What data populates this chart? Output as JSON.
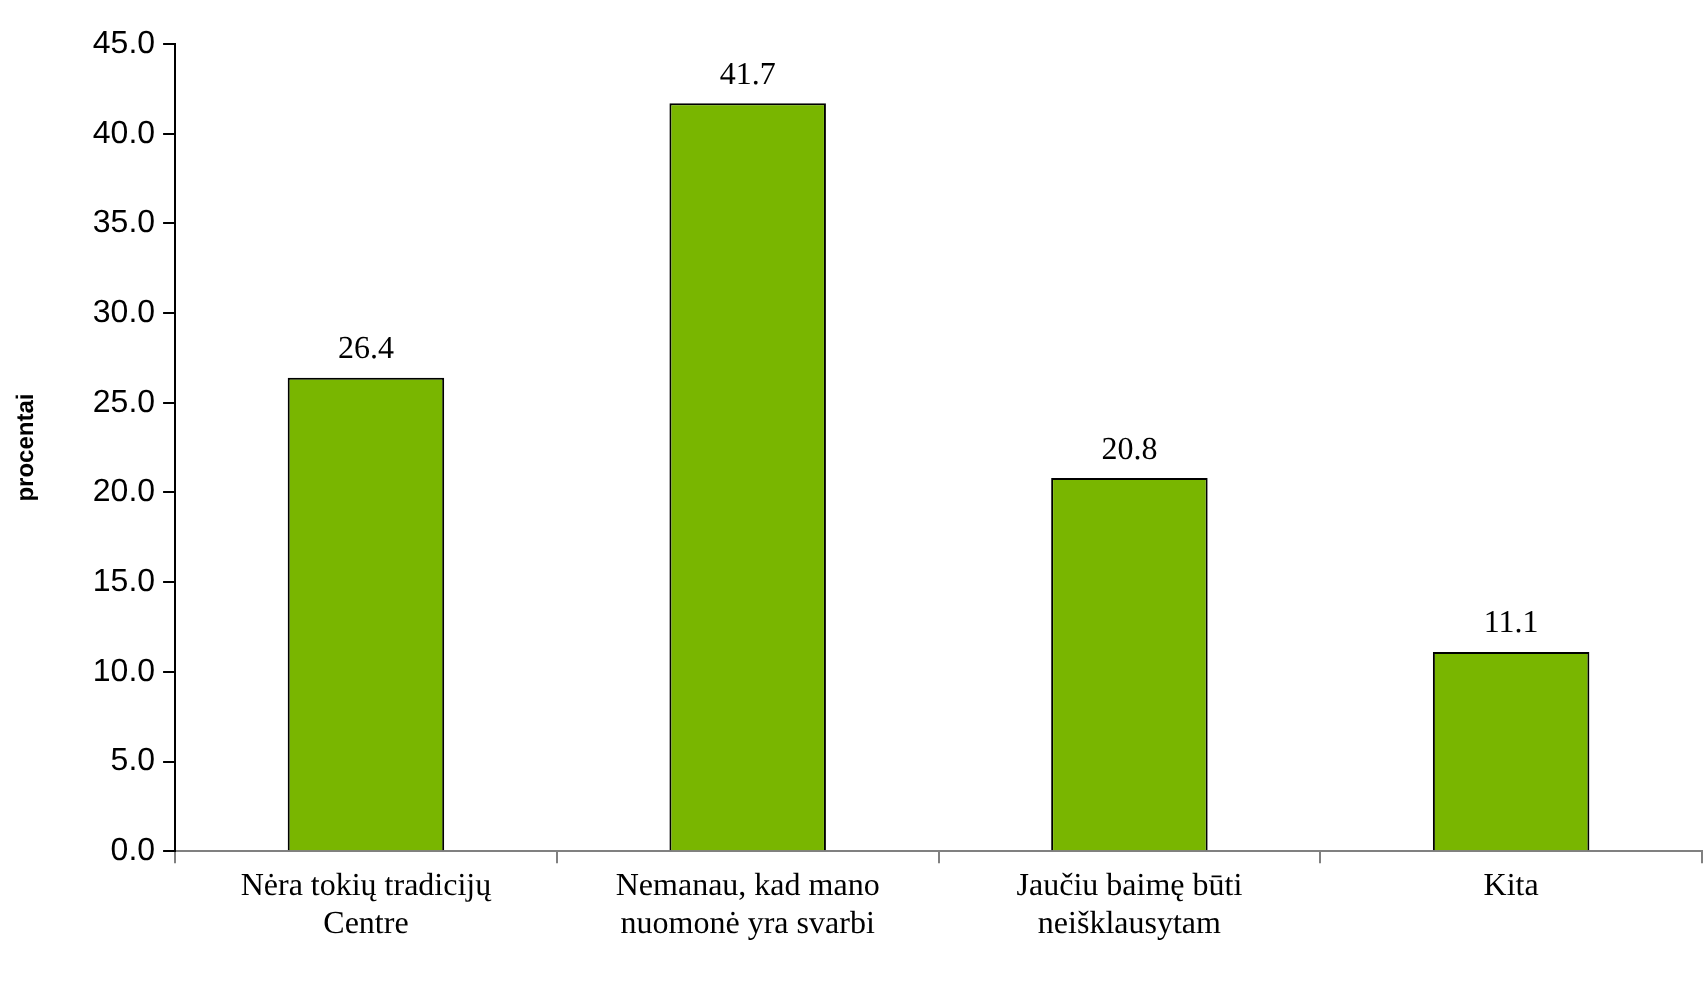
{
  "chart_data": {
    "type": "bar",
    "ylabel": "procentai",
    "categories": [
      "Nėra tokių tradicijų Centre",
      "Nemanau, kad mano nuomonė yra svarbi",
      "Jaučiu baimę būti neišklausytam",
      "Kita"
    ],
    "values": [
      26.4,
      41.7,
      20.8,
      11.1
    ],
    "color": "#79b600",
    "ylim": [
      0,
      45
    ],
    "yticks": [
      {
        "value": 0,
        "label": "0.0"
      },
      {
        "value": 5,
        "label": "5.0"
      },
      {
        "value": 10,
        "label": "10.0"
      },
      {
        "value": 15,
        "label": "15.0"
      },
      {
        "value": 20,
        "label": "20.0"
      },
      {
        "value": 25,
        "label": "25.0"
      },
      {
        "value": 30,
        "label": "30.0"
      },
      {
        "value": 35,
        "label": "35.0"
      },
      {
        "value": 40,
        "label": "40.0"
      },
      {
        "value": 45,
        "label": "45.0"
      }
    ],
    "data_labels": true
  }
}
